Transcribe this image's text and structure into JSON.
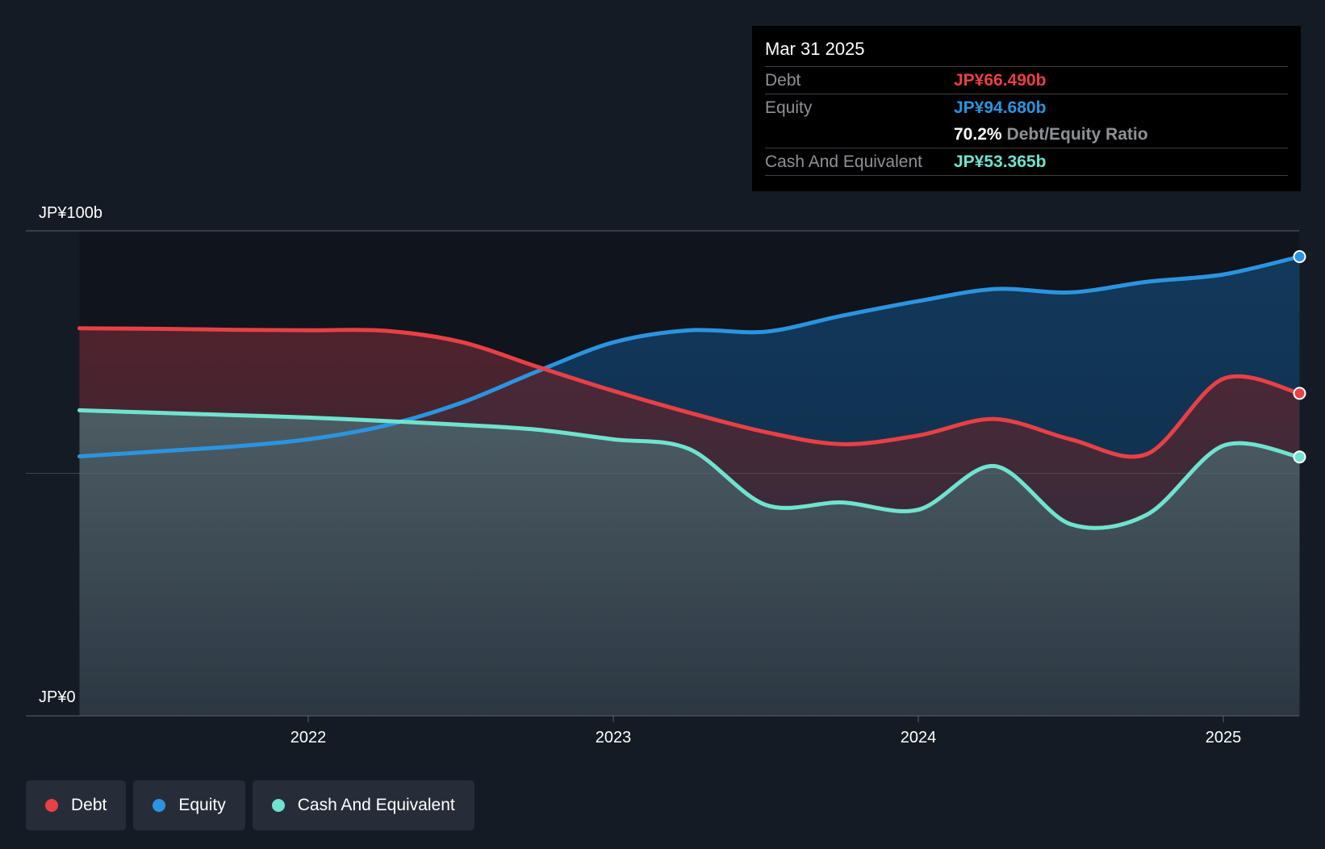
{
  "colors": {
    "debt": "#e84045",
    "equity": "#2b94e0",
    "cash": "#6fe3cf",
    "background": "#151b24",
    "plot_background": "#10141c"
  },
  "tooltip": {
    "date": "Mar 31 2025",
    "debt_label": "Debt",
    "debt_value": "JP¥66.490b",
    "equity_label": "Equity",
    "equity_value": "JP¥94.680b",
    "ratio_value": "70.2%",
    "ratio_label": "Debt/Equity Ratio",
    "cash_label": "Cash And Equivalent",
    "cash_value": "JP¥53.365b"
  },
  "legend": {
    "debt": "Debt",
    "equity": "Equity",
    "cash": "Cash And Equivalent"
  },
  "chart_data": {
    "type": "area",
    "x_tick_labels": [
      "2022",
      "2023",
      "2024",
      "2025"
    ],
    "y_tick_labels": [
      "JP¥100b",
      "JP¥0"
    ],
    "ylim": [
      0,
      100
    ],
    "xlim": [
      2021.07,
      2025.25
    ],
    "grid": true,
    "legend_position": "bottom-left",
    "series": [
      {
        "name": "Debt",
        "color": "#e84045",
        "x": [
          2021.25,
          2021.5,
          2021.75,
          2022.0,
          2022.25,
          2022.5,
          2022.75,
          2023.0,
          2023.25,
          2023.5,
          2023.75,
          2024.0,
          2024.25,
          2024.5,
          2024.75,
          2025.0,
          2025.25
        ],
        "values": [
          79.9,
          79.8,
          79.6,
          79.5,
          79.4,
          77.1,
          72.0,
          67.0,
          62.5,
          58.5,
          56.0,
          57.8,
          61.2,
          57.0,
          54.0,
          69.5,
          66.49
        ]
      },
      {
        "name": "Equity",
        "color": "#2b94e0",
        "x": [
          2021.25,
          2021.5,
          2021.75,
          2022.0,
          2022.25,
          2022.5,
          2022.75,
          2023.0,
          2023.25,
          2023.5,
          2023.75,
          2024.0,
          2024.25,
          2024.5,
          2024.75,
          2025.0,
          2025.25
        ],
        "values": [
          53.5,
          54.5,
          55.5,
          57.0,
          59.8,
          64.5,
          71.0,
          77.0,
          79.5,
          79.2,
          82.5,
          85.5,
          88.0,
          87.3,
          89.5,
          91.0,
          94.68
        ]
      },
      {
        "name": "Cash And Equivalent",
        "color": "#6fe3cf",
        "x": [
          2021.25,
          2021.5,
          2021.75,
          2022.0,
          2022.25,
          2022.5,
          2022.75,
          2023.0,
          2023.25,
          2023.5,
          2023.75,
          2024.0,
          2024.25,
          2024.5,
          2024.75,
          2025.0,
          2025.25
        ],
        "values": [
          63.0,
          62.5,
          62.0,
          61.5,
          60.8,
          60.0,
          59.0,
          57.0,
          55.0,
          43.5,
          44.0,
          42.5,
          51.5,
          39.5,
          41.5,
          55.7,
          53.365
        ]
      }
    ]
  }
}
